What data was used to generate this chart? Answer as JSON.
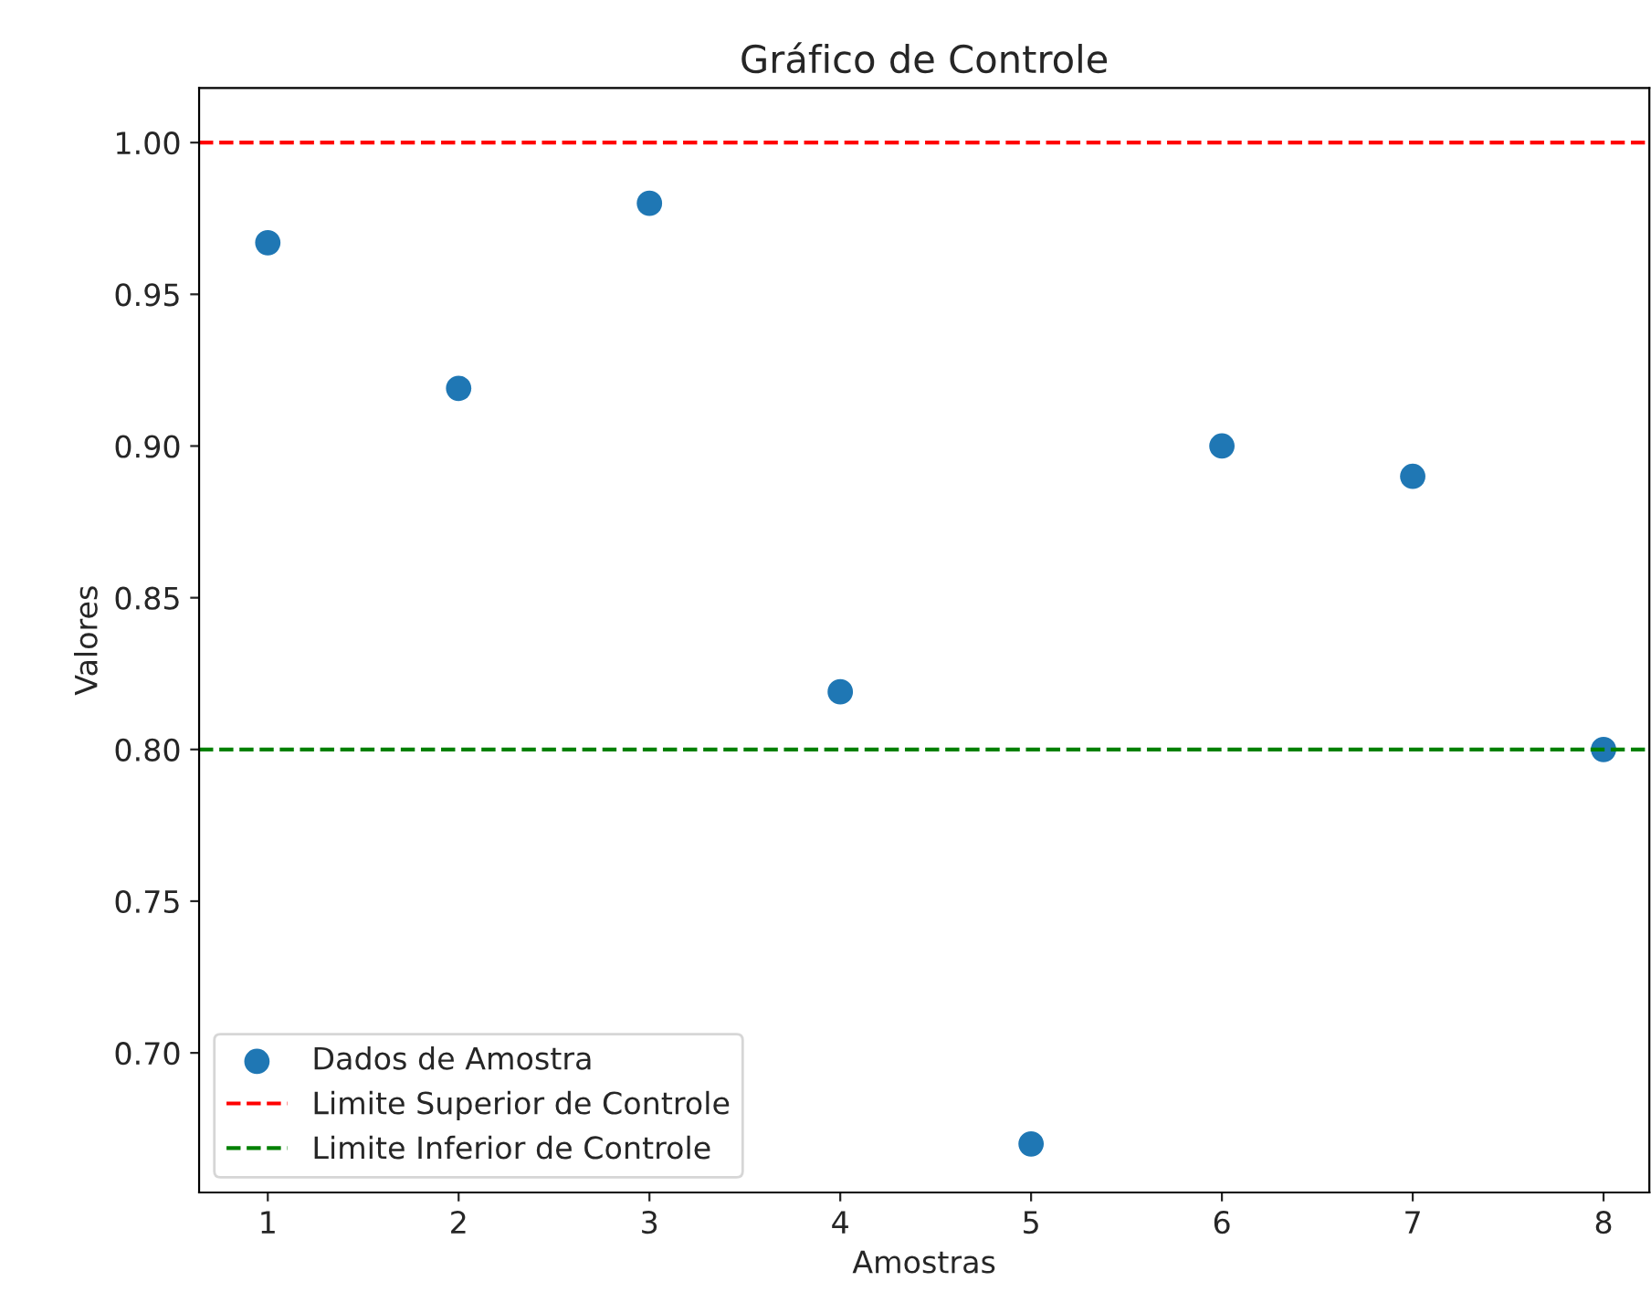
{
  "chart_data": {
    "type": "scatter",
    "title": "Gráfico de Controle",
    "xlabel": "Amostras",
    "ylabel": "Valores",
    "x": [
      1,
      2,
      3,
      4,
      5,
      6,
      7,
      8
    ],
    "series": [
      {
        "name": "Dados de Amostra",
        "color": "#1f77b4",
        "values": [
          0.967,
          0.919,
          0.98,
          0.819,
          0.67,
          0.9,
          0.89,
          0.8
        ]
      }
    ],
    "ref_lines": [
      {
        "axis": "y",
        "value": 1.0,
        "label": "Limite Superior de Controle",
        "color": "#ff0000",
        "line_style": "dashed"
      },
      {
        "axis": "y",
        "value": 0.8,
        "label": "Limite Inferior de Controle",
        "color": "#008000",
        "line_style": "dashed"
      }
    ],
    "xlim": [
      0.64,
      8.24
    ],
    "ylim": [
      0.654,
      1.018
    ],
    "xticks": [
      1,
      2,
      3,
      4,
      5,
      6,
      7,
      8
    ],
    "yticks": [
      {
        "value": 0.7,
        "label": "0.70"
      },
      {
        "value": 0.75,
        "label": "0.75"
      },
      {
        "value": 0.8,
        "label": "0.80"
      },
      {
        "value": 0.85,
        "label": "0.85"
      },
      {
        "value": 0.9,
        "label": "0.90"
      },
      {
        "value": 0.95,
        "label": "0.95"
      },
      {
        "value": 1.0,
        "label": "1.00"
      }
    ],
    "marker": "circle",
    "grid": false,
    "legend": "bottom left"
  }
}
